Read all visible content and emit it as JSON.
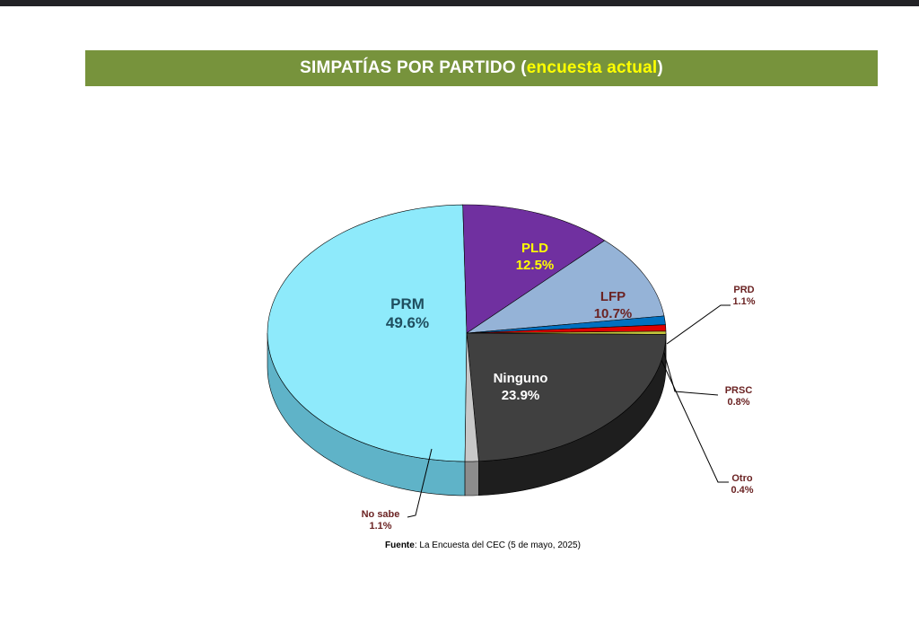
{
  "title": {
    "prefix": "SIMPATÍAS POR PARTIDO (",
    "highlight": "encuesta actual",
    "suffix": ")"
  },
  "source": {
    "label": "Fuente",
    "text": ": La Encuesta del CEC (5 de mayo, 2025)"
  },
  "colors": {
    "banner": "#77933c",
    "highlight": "#ffff00",
    "label_dark_red": "#6b2323"
  },
  "chart_data": {
    "type": "pie",
    "title": "SIMPATÍAS POR PARTIDO (encuesta actual)",
    "unit": "%",
    "slices": [
      {
        "name": "PRM",
        "value": 49.6,
        "label": "49.6%",
        "color": "#8eeafb",
        "side": "#5fb3c8"
      },
      {
        "name": "PLD",
        "value": 12.5,
        "label": "12.5%",
        "color": "#7030a0",
        "side": "#4c1f70"
      },
      {
        "name": "LFP",
        "value": 10.7,
        "label": "10.7%",
        "color": "#95b3d7",
        "side": "#6a86a8"
      },
      {
        "name": "PRD",
        "value": 1.1,
        "label": "1.1%",
        "color": "#0070c0",
        "side": "#004f88"
      },
      {
        "name": "PRSC",
        "value": 0.8,
        "label": "0.8%",
        "color": "#e00000",
        "side": "#9c0000"
      },
      {
        "name": "Otro",
        "value": 0.4,
        "label": "0.4%",
        "color": "#c4c43c",
        "side": "#8c8c28"
      },
      {
        "name": "Ninguno",
        "value": 23.9,
        "label": "23.9%",
        "color": "#404040",
        "side": "#1e1e1e"
      },
      {
        "name": "No sabe",
        "value": 1.1,
        "label": "1.1%",
        "color": "#c8c8c8",
        "side": "#8c8c8c"
      }
    ]
  }
}
